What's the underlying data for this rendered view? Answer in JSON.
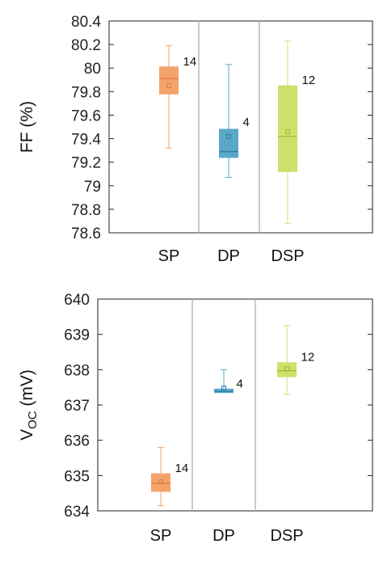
{
  "chart_data": [
    {
      "type": "box",
      "ylabel": "FF (%)",
      "ylim": [
        78.6,
        80.4
      ],
      "yticks": [
        78.6,
        78.8,
        79,
        79.2,
        79.4,
        79.6,
        79.8,
        80,
        80.2,
        80.4
      ],
      "ytick_labels": [
        "78.6",
        "78.8",
        "79",
        "79.2",
        "79.4",
        "79.6",
        "79.8",
        "80",
        "80.2",
        "80.4"
      ],
      "categories": [
        "SP",
        "DP",
        "DSP"
      ],
      "grid": false,
      "boxes": [
        {
          "category": "SP",
          "color": "#f4a46a",
          "line_color": "#e07b3a",
          "whisker_low": 79.32,
          "q1": 79.78,
          "median": 79.91,
          "q3": 80.01,
          "whisker_high": 80.19,
          "mean": 79.85,
          "n": "14"
        },
        {
          "category": "DP",
          "color": "#5aa8c8",
          "line_color": "#2f7fa6",
          "whisker_low": 79.07,
          "q1": 79.24,
          "median": 79.29,
          "q3": 79.48,
          "whisker_high": 80.03,
          "mean": 79.42,
          "n": "4"
        },
        {
          "category": "DSP",
          "color": "#cfe06a",
          "line_color": "#9fb83a",
          "whisker_low": 78.68,
          "q1": 79.12,
          "median": 79.42,
          "q3": 79.85,
          "whisker_high": 80.23,
          "mean": 79.46,
          "n": "12"
        }
      ]
    },
    {
      "type": "box",
      "ylabel_main": "V",
      "ylabel_sub": "OC",
      "ylabel_unit": " (mV)",
      "ylim": [
        634,
        640
      ],
      "yticks": [
        634,
        635,
        636,
        637,
        638,
        639,
        640
      ],
      "ytick_labels": [
        "634",
        "635",
        "636",
        "637",
        "638",
        "639",
        "640"
      ],
      "categories": [
        "SP",
        "DP",
        "DSP"
      ],
      "grid": false,
      "boxes": [
        {
          "category": "SP",
          "color": "#f4a46a",
          "line_color": "#e07b3a",
          "whisker_low": 634.15,
          "q1": 634.55,
          "median": 634.78,
          "q3": 635.05,
          "whisker_high": 635.8,
          "mean": 634.82,
          "n": "14"
        },
        {
          "category": "DP",
          "color": "#5aa8c8",
          "line_color": "#2f7fa6",
          "whisker_low": 637.35,
          "q1": 637.35,
          "median": 637.38,
          "q3": 637.45,
          "whisker_high": 638.0,
          "mean": 637.48,
          "n": "4"
        },
        {
          "category": "DSP",
          "color": "#cfe06a",
          "line_color": "#9fb83a",
          "whisker_low": 637.3,
          "q1": 637.8,
          "median": 637.97,
          "q3": 638.2,
          "whisker_high": 639.25,
          "mean": 638.02,
          "n": "12"
        }
      ]
    }
  ]
}
